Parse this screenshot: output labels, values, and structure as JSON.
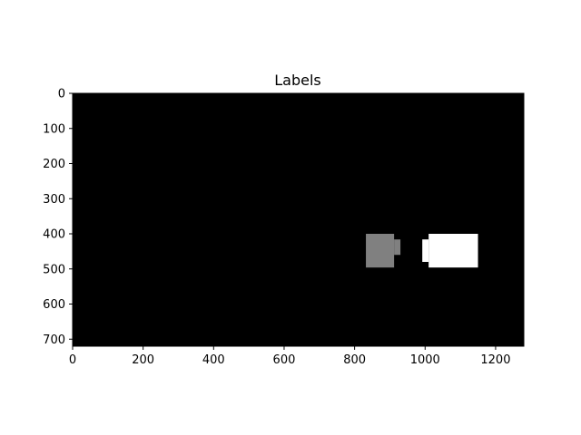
{
  "chart_data": {
    "type": "heatmap",
    "title": "Labels",
    "xlabel": "",
    "ylabel": "",
    "image_width": 1280,
    "image_height": 720,
    "xlim": [
      0,
      1280
    ],
    "ylim": [
      720,
      0
    ],
    "xticks": [
      0,
      200,
      400,
      600,
      800,
      1000,
      1200
    ],
    "yticks": [
      0,
      100,
      200,
      300,
      400,
      500,
      600,
      700
    ],
    "colormap": "gray",
    "background": {
      "label": 0,
      "color": "#000000"
    },
    "regions": [
      {
        "label": 1,
        "color": "#808080",
        "rects": [
          {
            "x0": 832,
            "x1": 912,
            "y0": 400,
            "y1": 496
          },
          {
            "x0": 912,
            "x1": 930,
            "y0": 416,
            "y1": 460
          }
        ]
      },
      {
        "label": 2,
        "color": "#ffffff",
        "rects": [
          {
            "x0": 1010,
            "x1": 1150,
            "y0": 400,
            "y1": 496
          },
          {
            "x0": 992,
            "x1": 1010,
            "y0": 416,
            "y1": 480
          }
        ]
      }
    ],
    "grid": false,
    "legend": "none"
  }
}
